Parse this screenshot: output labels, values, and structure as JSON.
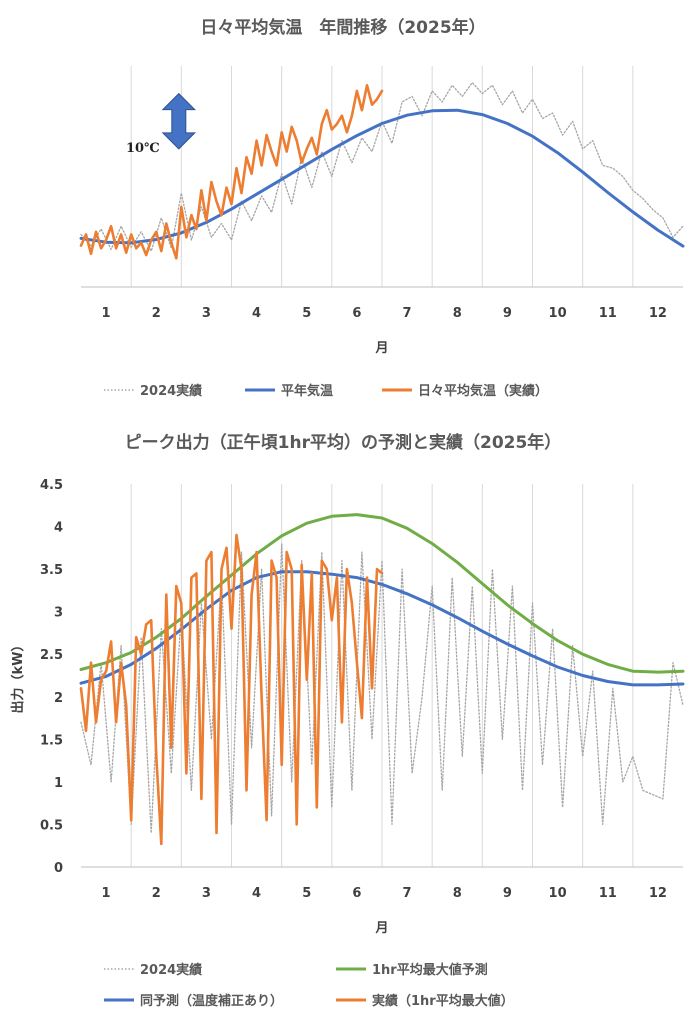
{
  "colors": {
    "normal": "#4472C4",
    "actual": "#ED7D31",
    "prev_year": "#A6A6A6",
    "max_pred": "#70AD47",
    "arrow": "#4472C4",
    "grid": "#D9D9D9"
  },
  "chart_data": [
    {
      "type": "line",
      "title": "日々平均気温　年間推移（2025年）",
      "xlabel": "月",
      "ylabel": "",
      "categories": [
        "1",
        "2",
        "3",
        "4",
        "5",
        "6",
        "7",
        "8",
        "9",
        "10",
        "11",
        "12"
      ],
      "xlim": [
        0,
        12
      ],
      "ylim": [
        -4,
        36
      ],
      "grid": "vertical",
      "legend_position": "bottom",
      "annotation": {
        "label": "10℃",
        "icon": "double-arrow-vertical-icon",
        "from": 21,
        "to": 31,
        "x": 1.95
      },
      "series": [
        {
          "name": "2024実績",
          "style": "dotted",
          "color": "#A6A6A6",
          "x": [
            0.0,
            0.2,
            0.4,
            0.6,
            0.8,
            1.0,
            1.2,
            1.4,
            1.6,
            1.8,
            2.0,
            2.2,
            2.4,
            2.6,
            2.8,
            3.0,
            3.2,
            3.4,
            3.6,
            3.8,
            4.0,
            4.2,
            4.4,
            4.6,
            4.8,
            5.0,
            5.2,
            5.4,
            5.6,
            5.8,
            6.0,
            6.2,
            6.4,
            6.6,
            6.8,
            7.0,
            7.2,
            7.4,
            7.6,
            7.8,
            8.0,
            8.2,
            8.4,
            8.6,
            8.8,
            9.0,
            9.2,
            9.4,
            9.6,
            9.8,
            10.0,
            10.2,
            10.4,
            10.6,
            10.8,
            11.0,
            11.2,
            11.4,
            11.6,
            11.8,
            12.0
          ],
          "y": [
            5.5,
            3.5,
            6.5,
            2.8,
            7.0,
            3.2,
            6.0,
            2.5,
            8.5,
            3.0,
            13.0,
            4.5,
            10.5,
            5.0,
            7.5,
            4.5,
            11.5,
            8.0,
            12.5,
            9.5,
            16.5,
            11.0,
            19.5,
            14.0,
            20.5,
            16.0,
            22.5,
            18.5,
            23.0,
            20.5,
            26.0,
            22.0,
            29.5,
            30.5,
            27.0,
            31.5,
            29.5,
            32.5,
            30.5,
            33.0,
            31.0,
            32.5,
            29.0,
            31.5,
            27.5,
            30.0,
            26.5,
            27.5,
            23.5,
            26.0,
            21.0,
            22.5,
            18.0,
            17.5,
            16.0,
            13.5,
            12.0,
            10.0,
            8.5,
            5.0,
            7.0
          ]
        },
        {
          "name": "平年気温",
          "style": "solid",
          "color": "#4472C4",
          "x": [
            0.0,
            0.5,
            1.0,
            1.5,
            2.0,
            2.5,
            3.0,
            3.5,
            4.0,
            4.5,
            5.0,
            5.5,
            6.0,
            6.5,
            7.0,
            7.5,
            8.0,
            8.5,
            9.0,
            9.5,
            10.0,
            10.5,
            11.0,
            11.5,
            12.0
          ],
          "y": [
            4.8,
            4.1,
            4.0,
            4.6,
            5.8,
            7.7,
            10.1,
            12.8,
            15.5,
            18.2,
            20.9,
            23.4,
            25.6,
            27.1,
            27.9,
            28.0,
            27.2,
            25.6,
            23.3,
            20.3,
            16.8,
            13.1,
            9.6,
            6.3,
            3.4
          ]
        },
        {
          "name": "日々平均気温（実績）",
          "style": "solid",
          "color": "#ED7D31",
          "x": [
            0.0,
            0.1,
            0.2,
            0.3,
            0.4,
            0.5,
            0.6,
            0.7,
            0.8,
            0.9,
            1.0,
            1.1,
            1.2,
            1.3,
            1.4,
            1.5,
            1.6,
            1.7,
            1.8,
            1.9,
            2.0,
            2.1,
            2.2,
            2.3,
            2.4,
            2.5,
            2.6,
            2.7,
            2.8,
            2.9,
            3.0,
            3.1,
            3.2,
            3.3,
            3.4,
            3.5,
            3.6,
            3.7,
            3.8,
            3.9,
            4.0,
            4.1,
            4.2,
            4.3,
            4.4,
            4.5,
            4.6,
            4.7,
            4.8,
            4.9,
            5.0,
            5.1,
            5.2,
            5.3,
            5.4,
            5.5,
            5.6,
            5.7,
            5.8,
            5.9,
            6.0
          ],
          "y": [
            3.5,
            5.5,
            2.0,
            6.0,
            3.0,
            4.5,
            7.0,
            3.0,
            5.5,
            2.2,
            5.5,
            3.0,
            4.0,
            1.8,
            4.5,
            6.0,
            2.5,
            7.5,
            4.0,
            1.2,
            10.5,
            5.0,
            9.0,
            6.5,
            13.5,
            8.0,
            15.0,
            11.5,
            9.0,
            14.0,
            11.0,
            17.5,
            13.0,
            19.5,
            16.5,
            22.5,
            18.0,
            23.5,
            20.5,
            18.0,
            24.0,
            20.5,
            25.0,
            22.5,
            18.5,
            21.0,
            23.0,
            20.0,
            25.5,
            28.0,
            24.5,
            25.5,
            27.0,
            24.0,
            27.0,
            31.5,
            28.0,
            32.5,
            29.0,
            30.0,
            31.5
          ]
        }
      ]
    },
    {
      "type": "line",
      "title": "ピーク出力（正午頃1hr平均）の予測と実績（2025年）",
      "xlabel": "月",
      "ylabel": "出力（kW）",
      "categories": [
        "1",
        "2",
        "3",
        "4",
        "5",
        "6",
        "7",
        "8",
        "9",
        "10",
        "11",
        "12"
      ],
      "xlim": [
        0,
        12
      ],
      "ylim": [
        0,
        4.5
      ],
      "yticks": [
        "0",
        "0.5",
        "1",
        "1.5",
        "2",
        "2.5",
        "3",
        "3.5",
        "4",
        "4.5"
      ],
      "grid": "vertical",
      "legend_position": "bottom",
      "series": [
        {
          "name": "2024実績",
          "style": "dotted",
          "color": "#A6A6A6",
          "x": [
            0.0,
            0.2,
            0.4,
            0.6,
            0.8,
            1.0,
            1.2,
            1.4,
            1.6,
            1.8,
            2.0,
            2.2,
            2.4,
            2.6,
            2.8,
            3.0,
            3.2,
            3.4,
            3.6,
            3.8,
            4.0,
            4.2,
            4.4,
            4.6,
            4.8,
            5.0,
            5.2,
            5.4,
            5.6,
            5.8,
            6.0,
            6.2,
            6.4,
            6.6,
            6.8,
            7.0,
            7.2,
            7.4,
            7.6,
            7.8,
            8.0,
            8.2,
            8.4,
            8.6,
            8.8,
            9.0,
            9.2,
            9.4,
            9.6,
            9.8,
            10.0,
            10.2,
            10.4,
            10.6,
            10.8,
            11.0,
            11.2,
            11.4,
            11.6,
            11.8,
            12.0
          ],
          "y": [
            1.7,
            1.2,
            2.4,
            1.0,
            2.6,
            0.5,
            2.7,
            0.4,
            2.8,
            1.1,
            3.0,
            0.9,
            3.1,
            1.5,
            3.4,
            0.5,
            3.7,
            1.4,
            3.5,
            0.6,
            3.8,
            1.0,
            3.6,
            1.2,
            3.7,
            0.7,
            3.6,
            0.9,
            3.7,
            1.5,
            3.6,
            0.5,
            3.5,
            1.1,
            2.0,
            3.3,
            0.9,
            3.4,
            1.3,
            3.3,
            1.1,
            3.5,
            1.5,
            3.3,
            0.9,
            3.1,
            1.2,
            2.8,
            0.7,
            2.6,
            1.3,
            2.3,
            0.5,
            2.1,
            1.0,
            1.3,
            0.9,
            0.85,
            0.8,
            2.4,
            1.9
          ]
        },
        {
          "name": "1hr平均最大値予測",
          "style": "solid",
          "color": "#70AD47",
          "x": [
            0.0,
            0.5,
            1.0,
            1.5,
            2.0,
            2.5,
            3.0,
            3.5,
            4.0,
            4.5,
            5.0,
            5.5,
            6.0,
            6.5,
            7.0,
            7.5,
            8.0,
            8.5,
            9.0,
            9.5,
            10.0,
            10.5,
            11.0,
            11.5,
            12.0
          ],
          "y": [
            2.32,
            2.4,
            2.52,
            2.7,
            2.92,
            3.18,
            3.43,
            3.68,
            3.89,
            4.04,
            4.12,
            4.14,
            4.1,
            3.98,
            3.8,
            3.58,
            3.33,
            3.08,
            2.86,
            2.66,
            2.5,
            2.38,
            2.3,
            2.29,
            2.3
          ]
        },
        {
          "name": "同予測（温度補正あり）",
          "style": "solid",
          "color": "#4472C4",
          "x": [
            0.0,
            0.5,
            1.0,
            1.5,
            2.0,
            2.5,
            3.0,
            3.5,
            4.0,
            4.5,
            5.0,
            5.5,
            6.0,
            6.5,
            7.0,
            7.5,
            8.0,
            8.5,
            9.0,
            9.5,
            10.0,
            10.5,
            11.0,
            11.5,
            12.0
          ],
          "y": [
            2.16,
            2.24,
            2.38,
            2.57,
            2.79,
            3.03,
            3.25,
            3.4,
            3.47,
            3.47,
            3.44,
            3.4,
            3.32,
            3.21,
            3.08,
            2.93,
            2.77,
            2.62,
            2.48,
            2.35,
            2.25,
            2.18,
            2.14,
            2.14,
            2.15
          ]
        },
        {
          "name": "実績（1hr平均最大値）",
          "style": "solid",
          "color": "#ED7D31",
          "x": [
            0.0,
            0.1,
            0.2,
            0.3,
            0.4,
            0.5,
            0.6,
            0.7,
            0.8,
            0.9,
            1.0,
            1.1,
            1.2,
            1.3,
            1.4,
            1.5,
            1.6,
            1.7,
            1.8,
            1.9,
            2.0,
            2.1,
            2.2,
            2.3,
            2.4,
            2.5,
            2.6,
            2.7,
            2.8,
            2.9,
            3.0,
            3.1,
            3.2,
            3.3,
            3.4,
            3.5,
            3.6,
            3.7,
            3.8,
            3.9,
            4.0,
            4.1,
            4.2,
            4.3,
            4.4,
            4.5,
            4.6,
            4.7,
            4.8,
            4.9,
            5.0,
            5.1,
            5.2,
            5.3,
            5.4,
            5.5,
            5.6,
            5.7,
            5.8,
            5.9,
            6.0
          ],
          "y": [
            2.1,
            1.6,
            2.4,
            1.7,
            2.2,
            2.3,
            2.65,
            1.7,
            2.4,
            1.9,
            0.55,
            2.7,
            2.5,
            2.85,
            2.9,
            1.3,
            0.27,
            3.2,
            1.4,
            3.3,
            3.1,
            1.1,
            3.4,
            3.45,
            0.8,
            3.6,
            3.7,
            0.4,
            3.5,
            3.75,
            2.8,
            3.9,
            3.5,
            0.9,
            3.2,
            3.7,
            2.0,
            0.55,
            3.6,
            3.4,
            1.2,
            3.7,
            3.5,
            0.5,
            3.55,
            2.2,
            3.45,
            0.7,
            3.6,
            3.5,
            2.9,
            3.4,
            1.7,
            3.5,
            3.1,
            2.4,
            1.75,
            3.4,
            2.1,
            3.5,
            3.45
          ]
        }
      ]
    }
  ]
}
